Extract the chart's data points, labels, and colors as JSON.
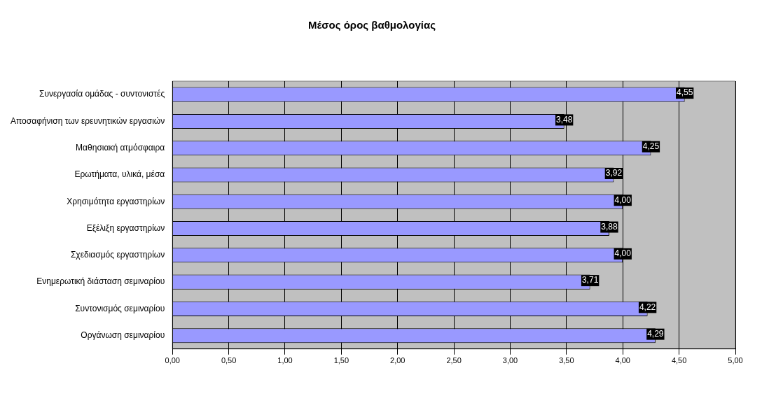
{
  "chart_data": {
    "type": "bar",
    "orientation": "horizontal",
    "title": "Μέσος όρος βαθμολογίας",
    "categories": [
      "Συνεργασία ομάδας - συντονιστές",
      "Αποσαφήνιση των ερευνητικών εργασιών",
      "Μαθησιακή ατμόσφαιρα",
      "Ερωτήματα, υλικά, μέσα",
      "Χρησιμότητα εργαστηρίων",
      "Εξέλιξη εργαστηρίων",
      "Σχεδιασμός εργαστηρίων",
      "Ενημερωτική διάσταση σεμιναρίου",
      "Συντονισμός σεμιναρίου",
      "Οργάνωση σεμιναρίου"
    ],
    "values": [
      4.55,
      3.48,
      4.25,
      3.92,
      4.0,
      3.88,
      4.0,
      3.71,
      4.22,
      4.29
    ],
    "value_labels": [
      "4,55",
      "3,48",
      "4,25",
      "3,92",
      "4,00",
      "3,88",
      "4,00",
      "3,71",
      "4,22",
      "4,29"
    ],
    "color": "#9999ff",
    "xlim": [
      0,
      5
    ],
    "xticks": [
      {
        "value": 0,
        "label": "0,00"
      },
      {
        "value": 0.5,
        "label": "0,50"
      },
      {
        "value": 1,
        "label": "1,00"
      },
      {
        "value": 1.5,
        "label": "1,50"
      },
      {
        "value": 2,
        "label": "2,00"
      },
      {
        "value": 2.5,
        "label": "2,50"
      },
      {
        "value": 3,
        "label": "3,00"
      },
      {
        "value": 3.5,
        "label": "3,50"
      },
      {
        "value": 4,
        "label": "4,00"
      },
      {
        "value": 4.5,
        "label": "4,50"
      },
      {
        "value": 5,
        "label": "5,00"
      }
    ],
    "grid": "x",
    "legend": false
  }
}
